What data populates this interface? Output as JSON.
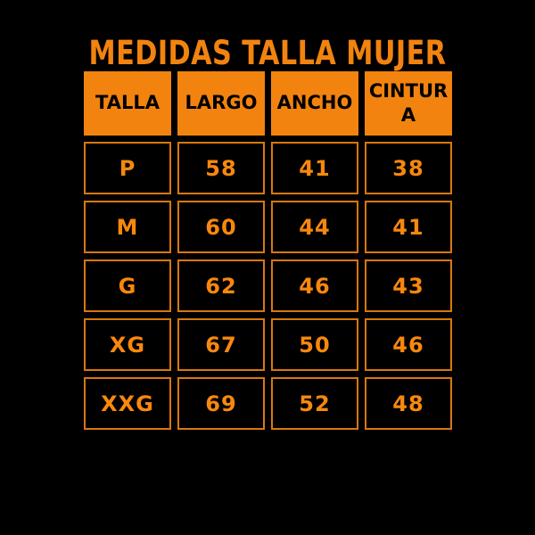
{
  "colors": {
    "background": "#000000",
    "accent": "#F2830F",
    "header_text": "#000000",
    "value_text": "#F8880D",
    "cell_border": "#D9770E"
  },
  "chart_data": {
    "type": "table",
    "title": "MEDIDAS TALLA MUJER",
    "columns": [
      "TALLA",
      "LARGO",
      "ANCHO",
      "CINTURA"
    ],
    "rows": [
      [
        "P",
        "58",
        "41",
        "38"
      ],
      [
        "M",
        "60",
        "44",
        "41"
      ],
      [
        "G",
        "62",
        "46",
        "43"
      ],
      [
        "XG",
        "67",
        "50",
        "46"
      ],
      [
        "XXG",
        "69",
        "52",
        "48"
      ]
    ]
  }
}
